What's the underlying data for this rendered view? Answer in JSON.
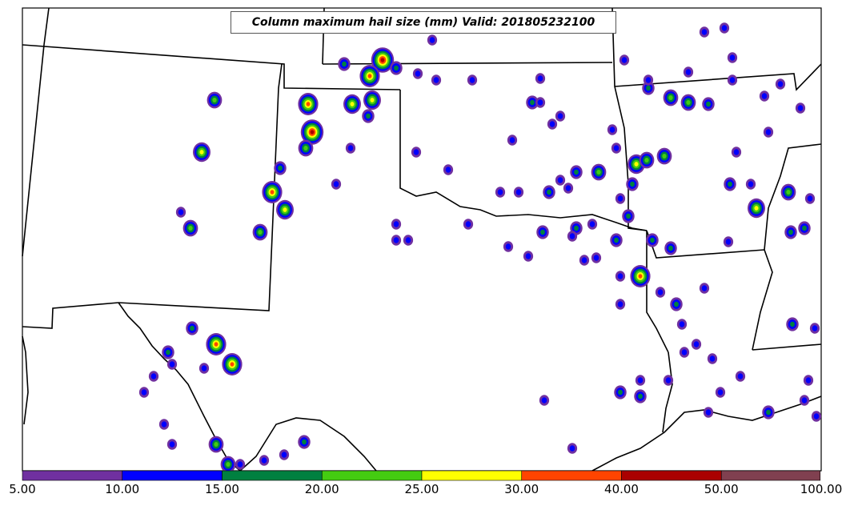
{
  "title": "Column maximum hail size (mm) Valid: 201805232100",
  "colorbar": {
    "bins": [
      {
        "label": "5.00",
        "color": "#7030a0"
      },
      {
        "label": "10.00",
        "color": "#0000ff"
      },
      {
        "label": "15.00",
        "color": "#008040"
      },
      {
        "label": "20.00",
        "color": "#44cc11"
      },
      {
        "label": "25.00",
        "color": "#ffff00"
      },
      {
        "label": "30.00",
        "color": "#ff4400"
      },
      {
        "label": "40.00",
        "color": "#aa0000"
      },
      {
        "label": "50.00",
        "color": "#804050"
      },
      {
        "label": "100.00",
        "color": "#ffffff"
      }
    ]
  }
}
